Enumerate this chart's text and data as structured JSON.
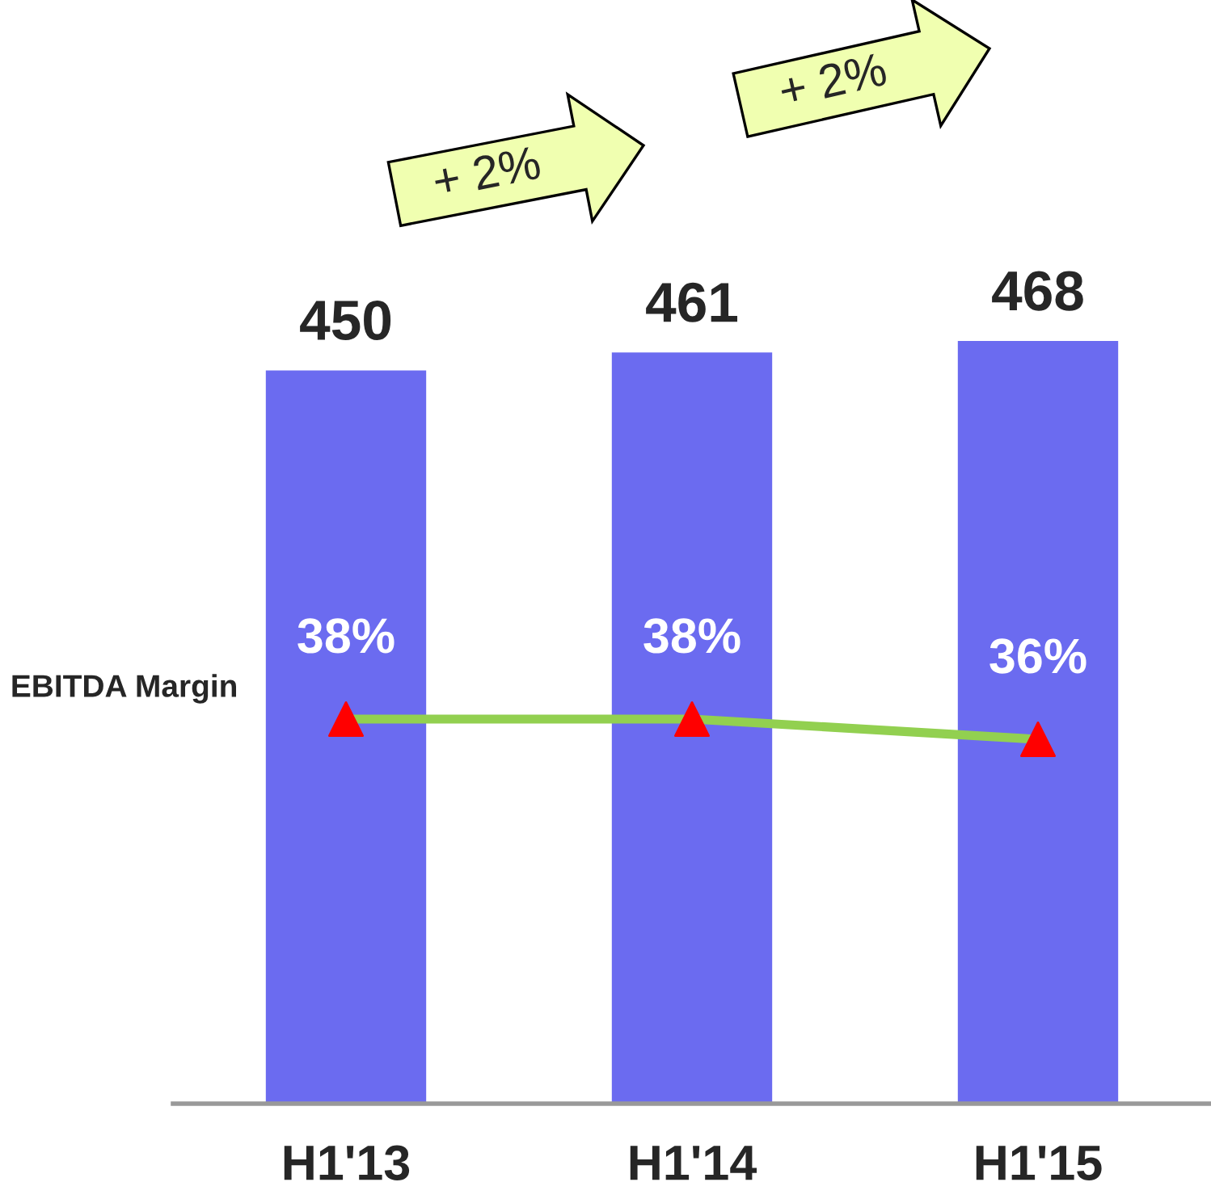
{
  "chart_data": {
    "type": "bar",
    "categories": [
      "H1'13",
      "H1'14",
      "H1'15"
    ],
    "series": [
      {
        "name": null,
        "color": "#6b6bf0",
        "values": [
          450,
          461,
          468
        ]
      },
      {
        "name": "EBITDA Margin",
        "type": "line",
        "axis": "y2",
        "color": "#92d050",
        "colors": [
          "#ff0000",
          "#ff0000",
          "#ff0000"
        ],
        "values": [
          38,
          38,
          36
        ],
        "value_labels": [
          "38%",
          "38%",
          "36%"
        ],
        "marker": "triangle",
        "line_style": "solid"
      }
    ],
    "data_labels": true,
    "tick_labels": "x",
    "grid": false,
    "legend": false,
    "annotations": [
      "+ 2%",
      "+ 2%"
    ]
  }
}
